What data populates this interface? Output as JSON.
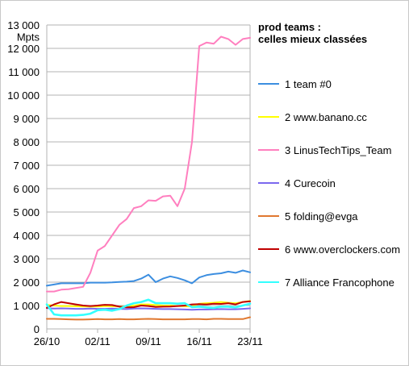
{
  "chart_data": {
    "type": "line",
    "title_lines": [
      "prod teams :",
      "celles mieux classées"
    ],
    "ylabel": "Mpts",
    "ylim": [
      0,
      13000
    ],
    "yticks": [
      0,
      1000,
      2000,
      3000,
      4000,
      5000,
      6000,
      7000,
      8000,
      9000,
      10000,
      11000,
      12000,
      13000
    ],
    "ytick_labels": [
      "0",
      "1 000",
      "2 000",
      "3 000",
      "4 000",
      "5 000",
      "6 000",
      "7 000",
      "8 000",
      "9 000",
      "10 000",
      "11 000",
      "12 000",
      "13 000"
    ],
    "xtick_labels": [
      "26/10",
      "02/11",
      "09/11",
      "16/11",
      "23/11"
    ],
    "xtick_index": [
      0,
      7,
      14,
      21,
      28
    ],
    "x": [
      "26/10",
      "27/10",
      "28/10",
      "29/10",
      "30/10",
      "31/10",
      "01/11",
      "02/11",
      "03/11",
      "04/11",
      "05/11",
      "06/11",
      "07/11",
      "08/11",
      "09/11",
      "10/11",
      "11/11",
      "12/11",
      "13/11",
      "14/11",
      "15/11",
      "16/11",
      "17/11",
      "18/11",
      "19/11",
      "20/11",
      "21/11",
      "22/11",
      "23/11"
    ],
    "grid": true,
    "legend_position": "right",
    "series": [
      {
        "name": "1 team #0",
        "color": "#3c8ee0",
        "values": [
          1850,
          1900,
          1950,
          1950,
          1950,
          1950,
          1980,
          1980,
          1980,
          1990,
          2010,
          2020,
          2050,
          2150,
          2320,
          2000,
          2150,
          2250,
          2180,
          2080,
          1950,
          2200,
          2300,
          2350,
          2380,
          2450,
          2400,
          2500,
          2420
        ]
      },
      {
        "name": "2 www.banano.cc",
        "color": "#ffff00",
        "values": [
          1030,
          1000,
          980,
          980,
          970,
          960,
          950,
          960,
          980,
          970,
          960,
          950,
          1000,
          1050,
          1050,
          1020,
          1000,
          1000,
          980,
          970,
          960,
          1080,
          1100,
          1120,
          1150,
          1120,
          1100,
          1150,
          1200
        ]
      },
      {
        "name": "3 LinusTechTips_Team",
        "color": "#ff7fbf",
        "values": [
          1600,
          1600,
          1680,
          1700,
          1750,
          1800,
          2400,
          3350,
          3550,
          4000,
          4450,
          4700,
          5170,
          5250,
          5500,
          5480,
          5670,
          5700,
          5250,
          6000,
          8000,
          12100,
          12250,
          12200,
          12500,
          12400,
          12150,
          12400,
          12450
        ]
      },
      {
        "name": "4 Curecoin",
        "color": "#7b68ee",
        "values": [
          890,
          870,
          880,
          870,
          860,
          860,
          870,
          860,
          860,
          870,
          860,
          850,
          870,
          880,
          870,
          860,
          850,
          850,
          840,
          830,
          820,
          830,
          830,
          840,
          850,
          840,
          840,
          860,
          880
        ]
      },
      {
        "name": "5 folding@evga",
        "color": "#e07830",
        "values": [
          430,
          430,
          420,
          410,
          400,
          400,
          410,
          420,
          410,
          410,
          420,
          410,
          410,
          420,
          430,
          420,
          410,
          410,
          410,
          410,
          420,
          420,
          410,
          430,
          430,
          420,
          420,
          420,
          500
        ]
      },
      {
        "name": "6 www.overclockers.com",
        "color": "#c00000",
        "values": [
          900,
          1050,
          1150,
          1100,
          1050,
          1000,
          980,
          1000,
          1030,
          1020,
          950,
          920,
          930,
          1000,
          980,
          940,
          950,
          960,
          980,
          1000,
          1050,
          1060,
          1050,
          1080,
          1070,
          1100,
          1050,
          1150,
          1180
        ]
      },
      {
        "name": "7 Alliance Francophone",
        "color": "#33ffff",
        "values": [
          1050,
          620,
          580,
          580,
          580,
          600,
          650,
          800,
          820,
          780,
          850,
          1000,
          1100,
          1150,
          1250,
          1100,
          1100,
          1100,
          1080,
          1100,
          930,
          950,
          920,
          900,
          950,
          950,
          920,
          1000,
          1080
        ]
      }
    ]
  }
}
